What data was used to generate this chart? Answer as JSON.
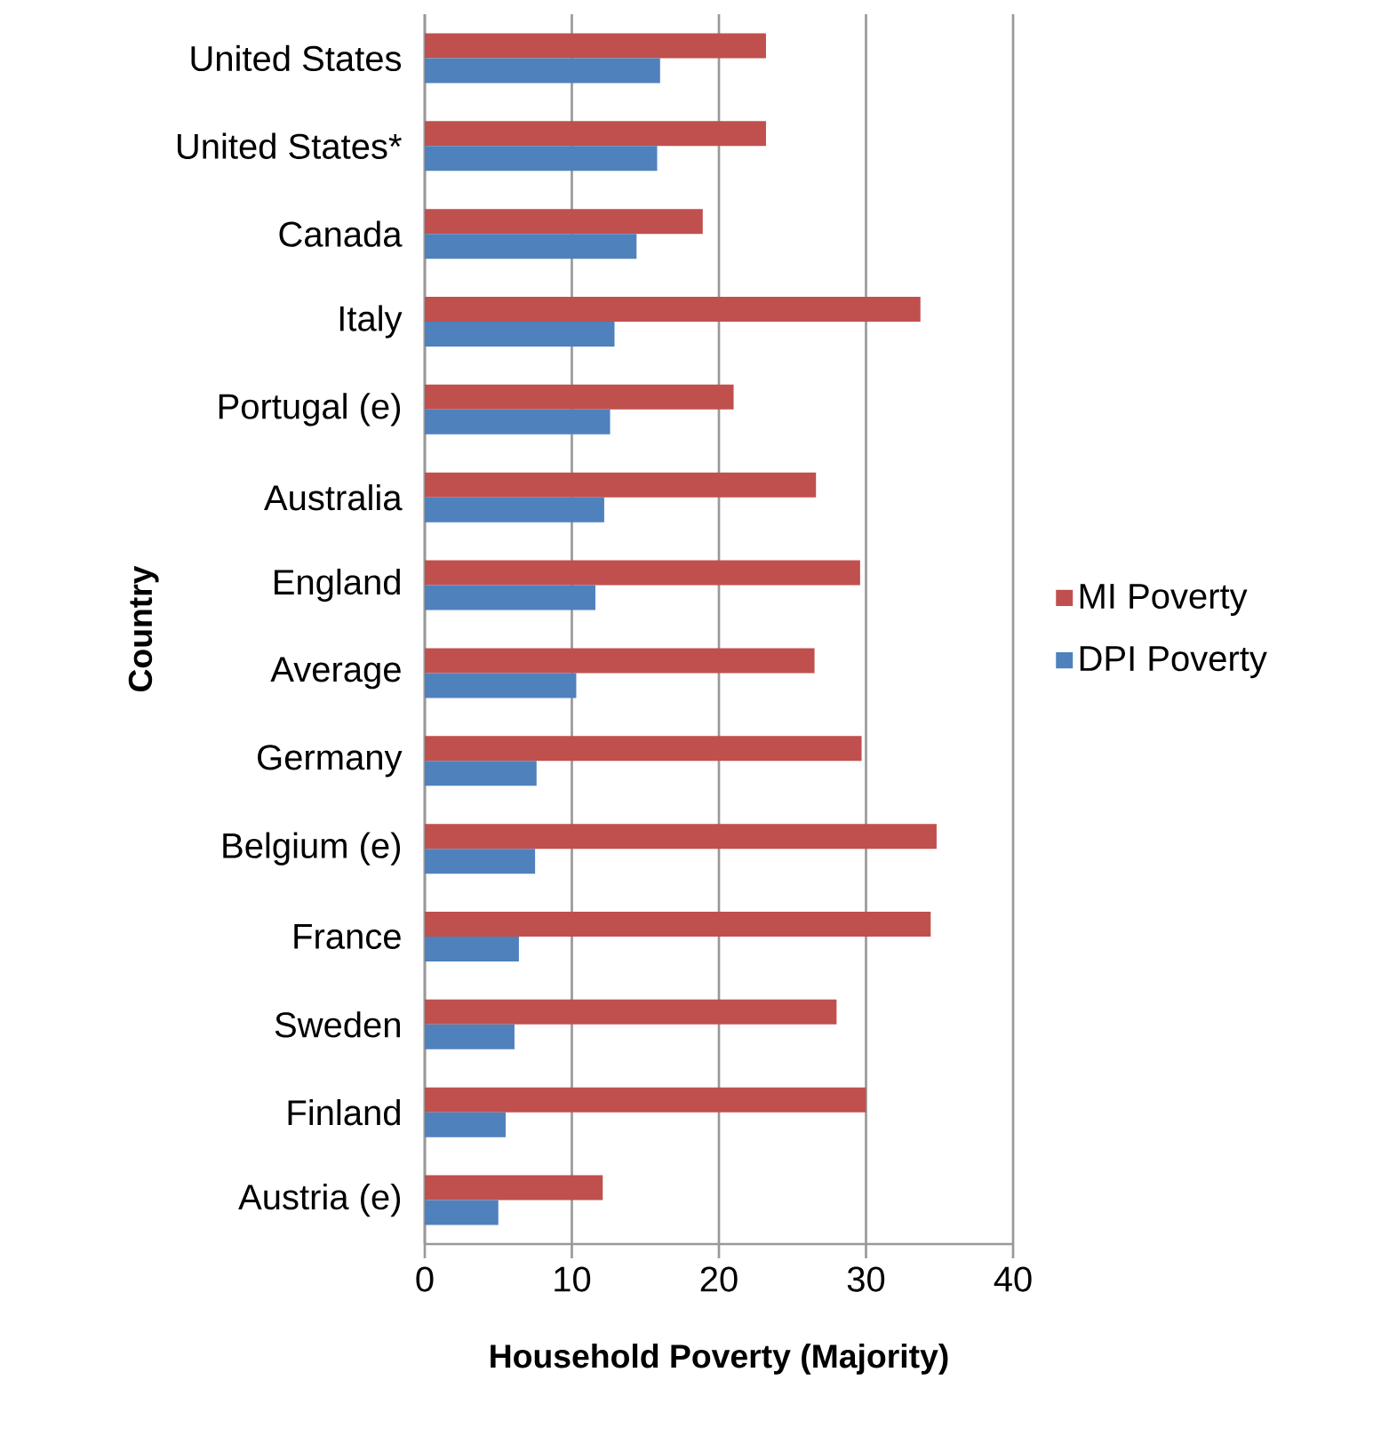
{
  "chart_data": {
    "type": "bar",
    "orientation": "horizontal",
    "xlabel": "Household Poverty (Majority)",
    "ylabel": "Country",
    "categories": [
      "United States",
      "United States*",
      "Canada",
      "Italy",
      "Portugal (e)",
      "Australia",
      "England",
      "Average",
      "Germany",
      "Belgium (e)",
      "France",
      "Sweden",
      "Finland",
      "Austria (e)"
    ],
    "series": [
      {
        "name": "MI Poverty",
        "color": "#c0504d",
        "values": [
          23.2,
          23.2,
          18.9,
          33.7,
          21.0,
          26.6,
          29.6,
          26.5,
          29.7,
          34.8,
          34.4,
          28.0,
          30.0,
          12.1
        ]
      },
      {
        "name": "DPI Poverty",
        "color": "#4f81bd",
        "values": [
          16.0,
          15.8,
          14.4,
          12.9,
          12.6,
          12.2,
          11.6,
          10.3,
          7.6,
          7.5,
          6.4,
          6.1,
          5.5,
          5.0
        ]
      }
    ],
    "xlim": [
      0,
      40
    ],
    "xticks": [
      0,
      10,
      20,
      30,
      40
    ],
    "grid": "x",
    "legend": "right"
  }
}
